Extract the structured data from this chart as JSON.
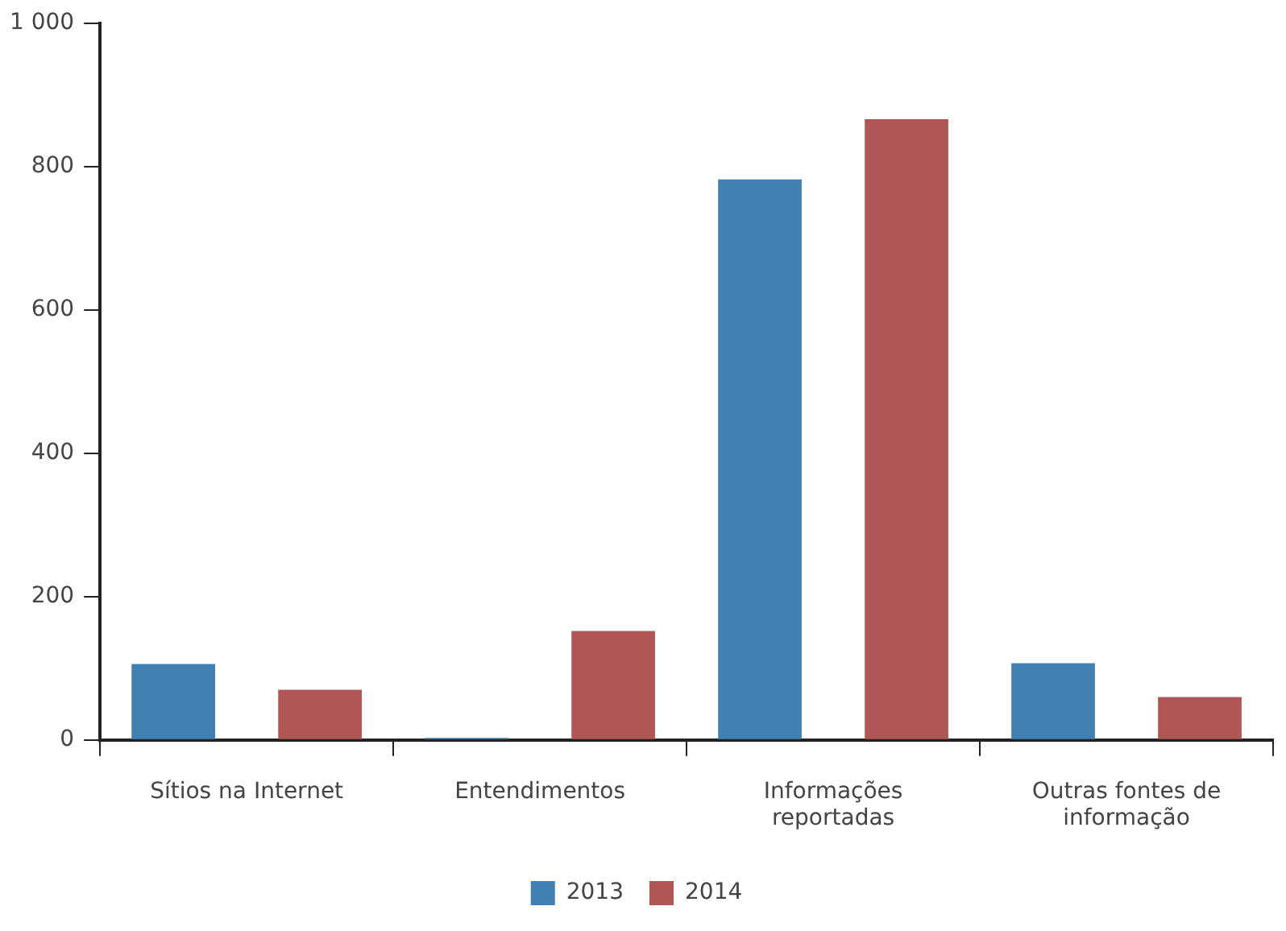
{
  "chart_data": {
    "type": "bar",
    "categories": [
      "Sítios na Internet",
      "Entendimentos",
      "Informações reportadas",
      "Outras fontes de informação"
    ],
    "series": [
      {
        "name": "2013",
        "color": "#4280b2",
        "values": [
          106,
          3,
          782,
          107
        ]
      },
      {
        "name": "2014",
        "color": "#b05656",
        "values": [
          70,
          152,
          866,
          60
        ]
      }
    ],
    "ylim": [
      0,
      1000
    ],
    "yticks": [
      0,
      200,
      400,
      600,
      800,
      {
        "value": 1000,
        "label": "1 000"
      }
    ],
    "grid": false,
    "legend": "bottom"
  }
}
